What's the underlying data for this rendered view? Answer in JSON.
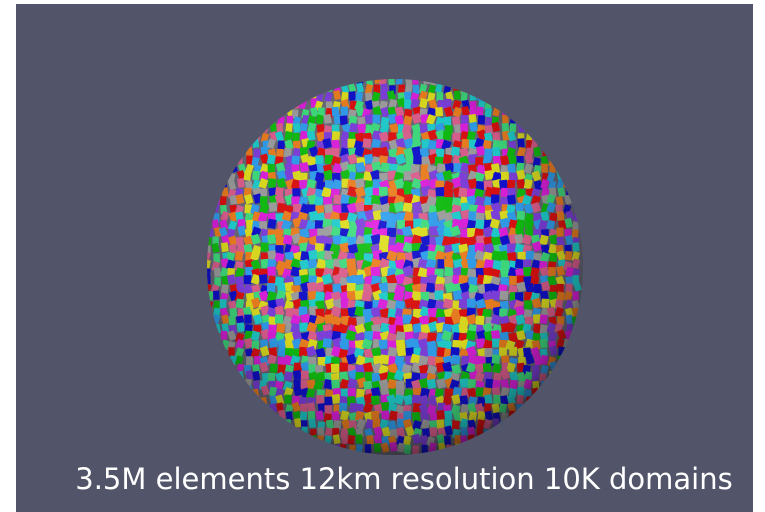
{
  "caption": "3.5M elements 12km resolution 10K domains"
}
